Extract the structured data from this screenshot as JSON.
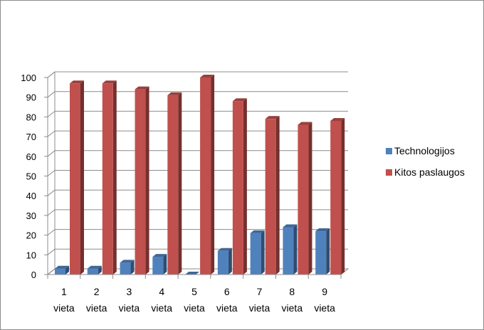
{
  "chart_data": {
    "type": "bar",
    "categories": [
      [
        "1",
        "vieta"
      ],
      [
        "2",
        "vieta"
      ],
      [
        "3",
        "vieta"
      ],
      [
        "4",
        "vieta"
      ],
      [
        "5",
        "vieta"
      ],
      [
        "6",
        "vieta"
      ],
      [
        "7",
        "vieta"
      ],
      [
        "8",
        "vieta"
      ],
      [
        "9",
        "vieta"
      ]
    ],
    "series": [
      {
        "name": "Technologijos",
        "color": "#4f81bd",
        "values": [
          3,
          3,
          6,
          9,
          0,
          12,
          21,
          24,
          22
        ]
      },
      {
        "name": "Kitos paslaugos",
        "color": "#c0504d",
        "values": [
          97,
          97,
          94,
          91,
          100,
          88,
          79,
          76,
          78
        ]
      }
    ],
    "y_ticks": [
      "0",
      "10",
      "20",
      "30",
      "40",
      "50",
      "60",
      "70",
      "80",
      "90",
      "100"
    ],
    "ylim": [
      0,
      100
    ],
    "grid": true,
    "legend_position": "right",
    "title": "",
    "xlabel": "",
    "ylabel": ""
  }
}
